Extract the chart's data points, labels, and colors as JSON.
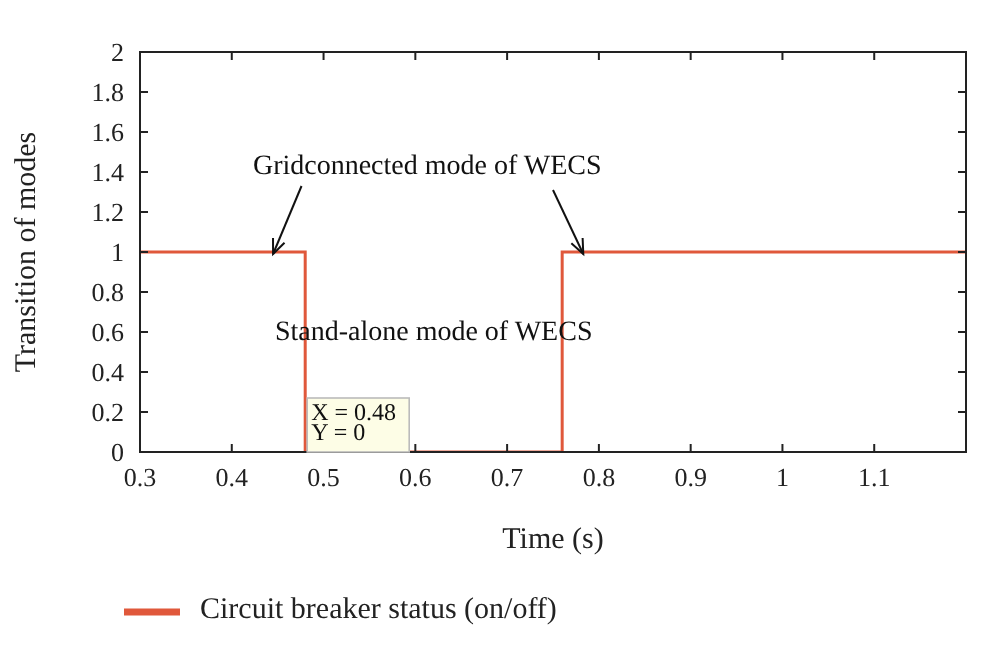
{
  "chart_data": {
    "type": "step",
    "xlabel": "Time (s)",
    "ylabel": "Transition of modes",
    "series": [
      {
        "name": "Circuit breaker status (on/off)",
        "color": "#e0583b",
        "x": [
          0.3,
          0.48,
          0.76,
          1.2
        ],
        "values": [
          1,
          0,
          1,
          1
        ]
      }
    ],
    "xlim": [
      0.3,
      1.2
    ],
    "xticks": [
      0.3,
      0.4,
      0.5,
      0.6,
      0.7,
      0.8,
      0.9,
      1,
      1.1
    ],
    "ylim": [
      0,
      2
    ],
    "yticks": [
      0,
      0.2,
      0.4,
      0.6,
      0.8,
      1,
      1.2,
      1.4,
      1.6,
      1.8,
      2
    ],
    "annotations": [
      "Gridconnected mode of WECS",
      "Stand-alone mode of WECS",
      {
        "text": "X = 0.48\nY = 0",
        "x": 0.48,
        "y": 0
      }
    ],
    "grid": false,
    "legend": "bottom",
    "marker": "none"
  }
}
